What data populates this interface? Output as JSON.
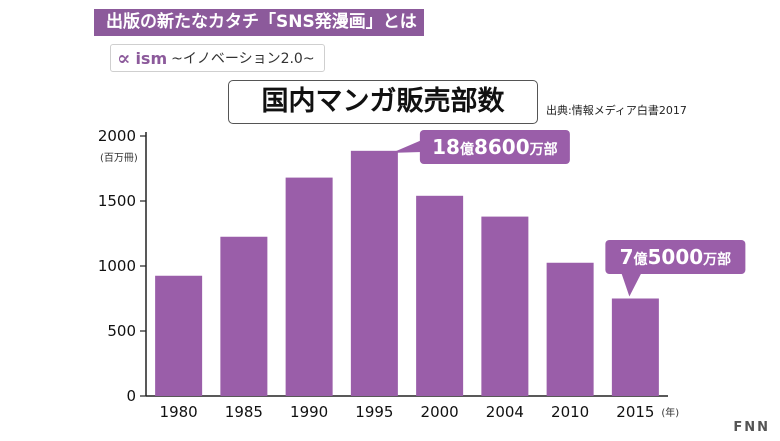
{
  "header": {
    "banner": "出版の新たなカタチ「SNS発漫画」とは",
    "brand_logo": "∝",
    "brand_name": "ism",
    "brand_tagline": "~イノベーション2.0~",
    "source": "出典:情報メディア白書2017",
    "watermark": "FNN"
  },
  "chart_data": {
    "type": "bar",
    "title": "国内マンガ販売部数",
    "ylabel": "(百万冊)",
    "xlabel_unit": "(年)",
    "categories": [
      "1980",
      "1985",
      "1990",
      "1995",
      "2000",
      "2004",
      "2010",
      "2015"
    ],
    "values": [
      925,
      1225,
      1680,
      1886,
      1540,
      1380,
      1025,
      750
    ],
    "ylim": [
      0,
      2000
    ],
    "yticks": [
      0,
      500,
      1000,
      1500,
      2000
    ],
    "bar_color": "#9a5ea9",
    "callouts": [
      {
        "index": 3,
        "parts": [
          "18",
          "億",
          "8600",
          "万部"
        ]
      },
      {
        "index": 7,
        "parts": [
          "7",
          "億",
          "5000",
          "万部"
        ]
      }
    ]
  }
}
